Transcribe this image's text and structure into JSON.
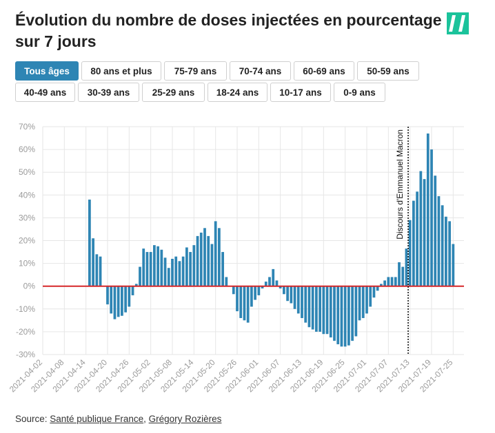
{
  "header": {
    "title": "Évolution du nombre de doses injectées en pourcentage sur 7 jours"
  },
  "filters": {
    "row1": [
      "Tous âges",
      "80 ans et plus",
      "75-79 ans",
      "70-74 ans",
      "60-69 ans",
      "50-59 ans"
    ],
    "row2": [
      "40-49 ans",
      "30-39 ans",
      "25-29 ans",
      "18-24 ans",
      "10-17 ans",
      "0-9 ans"
    ],
    "active": "Tous âges"
  },
  "source": {
    "prefix": "Source: ",
    "link1": "Santé publique France",
    "separator": ", ",
    "link2": "Grégory Rozières"
  },
  "colors": {
    "bar": "#2e85b4",
    "zero_line": "#d62728",
    "active_button": "#2e85b4",
    "logo": "#1bc39b"
  },
  "chart_data": {
    "type": "bar",
    "x_start": "2021-04-02",
    "x_end": "2021-07-28",
    "ylim": [
      -30,
      70
    ],
    "yticks": [
      -30,
      -20,
      -10,
      0,
      10,
      20,
      30,
      40,
      50,
      60,
      70
    ],
    "ytick_labels": [
      "-30%",
      "-20%",
      "-10%",
      "0%",
      "10%",
      "20%",
      "30%",
      "40%",
      "50%",
      "60%",
      "70%"
    ],
    "xtick_labels": [
      "2021-04-02",
      "2021-04-08",
      "2021-04-14",
      "2021-04-20",
      "2021-04-26",
      "2021-05-02",
      "2021-05-08",
      "2021-05-14",
      "2021-05-20",
      "2021-05-26",
      "2021-06-01",
      "2021-06-07",
      "2021-06-13",
      "2021-06-19",
      "2021-06-25",
      "2021-07-01",
      "2021-07-07",
      "2021-07-13",
      "2021-07-19",
      "2021-07-25"
    ],
    "grid": true,
    "series": [
      {
        "first_date": "2021-04-15",
        "values": [
          38,
          21,
          14,
          13,
          null,
          -8,
          -12,
          -14.5,
          -13.5,
          -13,
          -11.5,
          -9,
          -4,
          1,
          8.5,
          16.5,
          15,
          15,
          18,
          17.5,
          16,
          12.5,
          8,
          12,
          13,
          11,
          13,
          17,
          15,
          18,
          22,
          23.5,
          25.5,
          22,
          18.5,
          28.5,
          25.5,
          15,
          4,
          null,
          -3.5,
          -11,
          -14,
          -15,
          -16,
          -9,
          -6,
          -4,
          -1,
          2,
          4,
          7.5,
          2.5,
          -1,
          -3.5,
          -6.5,
          -7.5,
          -10,
          -12,
          -14,
          -16,
          -18,
          -19,
          -20,
          -20,
          -21,
          -21,
          -22.5,
          -24,
          -25.5,
          -26.5,
          -26.5,
          -26,
          -24,
          -22,
          -15,
          -14,
          -12,
          -9,
          -5,
          -2,
          1,
          2.5,
          4,
          4,
          4,
          10.5,
          8.5,
          16.5,
          29,
          37.5,
          41.5,
          50.5,
          47,
          67,
          60,
          48.5,
          39.5,
          35.5,
          30.5,
          28.5,
          18.5
        ]
      }
    ],
    "annotation": {
      "date": "2021-07-12",
      "label": "Discours d'Emmanuel Macron"
    }
  }
}
